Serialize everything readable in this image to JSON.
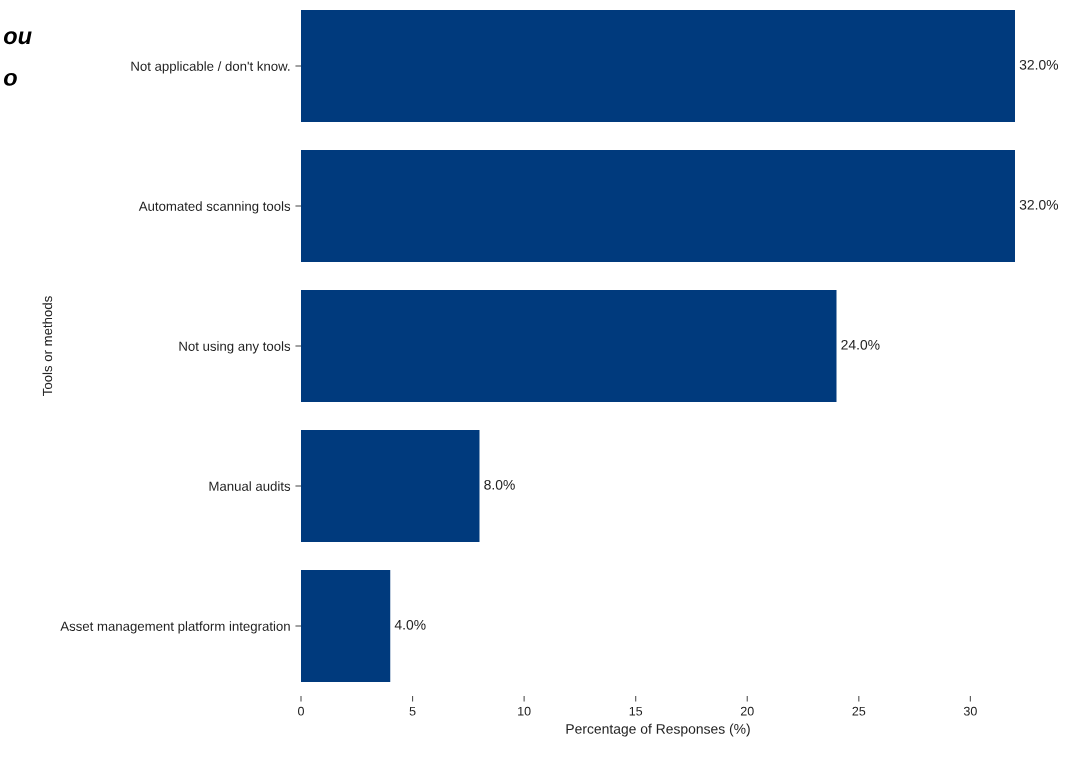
{
  "chart_data": {
    "type": "bar",
    "orientation": "horizontal",
    "xlabel": "Percentage of Responses (%)",
    "ylabel": "Tools or methods",
    "categories": [
      "Not applicable / don't know.",
      "Automated scanning tools",
      "Not using any tools",
      "Manual audits",
      "Asset management platform integration"
    ],
    "values": [
      32.0,
      32.0,
      24.0,
      8.0,
      4.0
    ],
    "value_labels": [
      "32.0%",
      "32.0%",
      "24.0%",
      "8.0%",
      "4.0%"
    ],
    "color": "#003a7d",
    "xlim": [
      0,
      32
    ],
    "xticks": [
      0,
      5,
      10,
      15,
      20,
      25,
      30
    ],
    "grid": false,
    "annotations": [
      "ou",
      "o"
    ]
  }
}
